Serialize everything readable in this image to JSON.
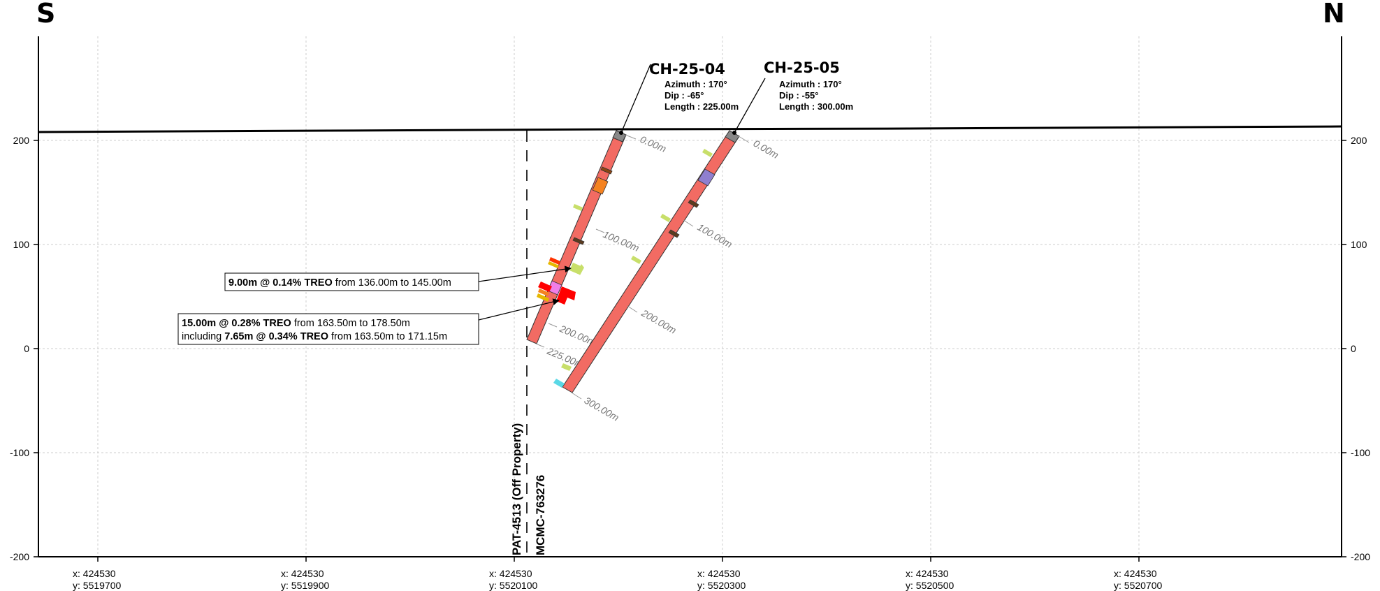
{
  "section": {
    "left_label": "S",
    "right_label": "N",
    "y_ticks": [
      "200",
      "100",
      "0",
      "-100",
      "-200"
    ],
    "x_ticks": [
      {
        "x": "x: 424530",
        "y": "y: 5519700"
      },
      {
        "x": "x: 424530",
        "y": "y: 5519900"
      },
      {
        "x": "x: 424530",
        "y": "y: 5520100"
      },
      {
        "x": "x: 424530",
        "y": "y: 5520300"
      },
      {
        "x": "x: 424530",
        "y": "y: 5520500"
      },
      {
        "x": "x: 424530",
        "y": "y: 5520700"
      }
    ],
    "boundary": {
      "left_claim": "PAT-4513 (Off Property)",
      "right_claim": "MCMC-763276"
    }
  },
  "holes": [
    {
      "id": "CH-25-04",
      "azimuth": "Azimuth : 170°",
      "dip": "Dip : -65°",
      "length": "Length : 225.00m",
      "depth_labels": [
        "0.00m",
        "100.00m",
        "200.00m",
        "225.00m"
      ]
    },
    {
      "id": "CH-25-05",
      "azimuth": "Azimuth : 170°",
      "dip": "Dip : -55°",
      "length": "Length : 300.00m",
      "depth_labels": [
        "0.00m",
        "100.00m",
        "200.00m",
        "300.00m"
      ]
    }
  ],
  "intercepts": [
    {
      "line1_bold": "9.00m @ 0.14% TREO",
      "line1_rest": " from 136.00m to 145.00m"
    },
    {
      "line1_bold": "15.00m @ 0.28% TREO",
      "line1_rest": " from 163.50m to 178.50m",
      "line2_pre": "including ",
      "line2_bold": "7.65m @ 0.34% TREO",
      "line2_rest": " from 163.50m to 171.15m"
    }
  ],
  "colors": {
    "hole_fill": "#f26b63",
    "collar": "#888888",
    "grid": "#cccccc",
    "lime": "#c8df6a",
    "purple": "#8f7fcf",
    "orange": "#f58220",
    "magenta": "#f07ee8",
    "red": "#ff0000",
    "cyan": "#5ad8e6"
  }
}
